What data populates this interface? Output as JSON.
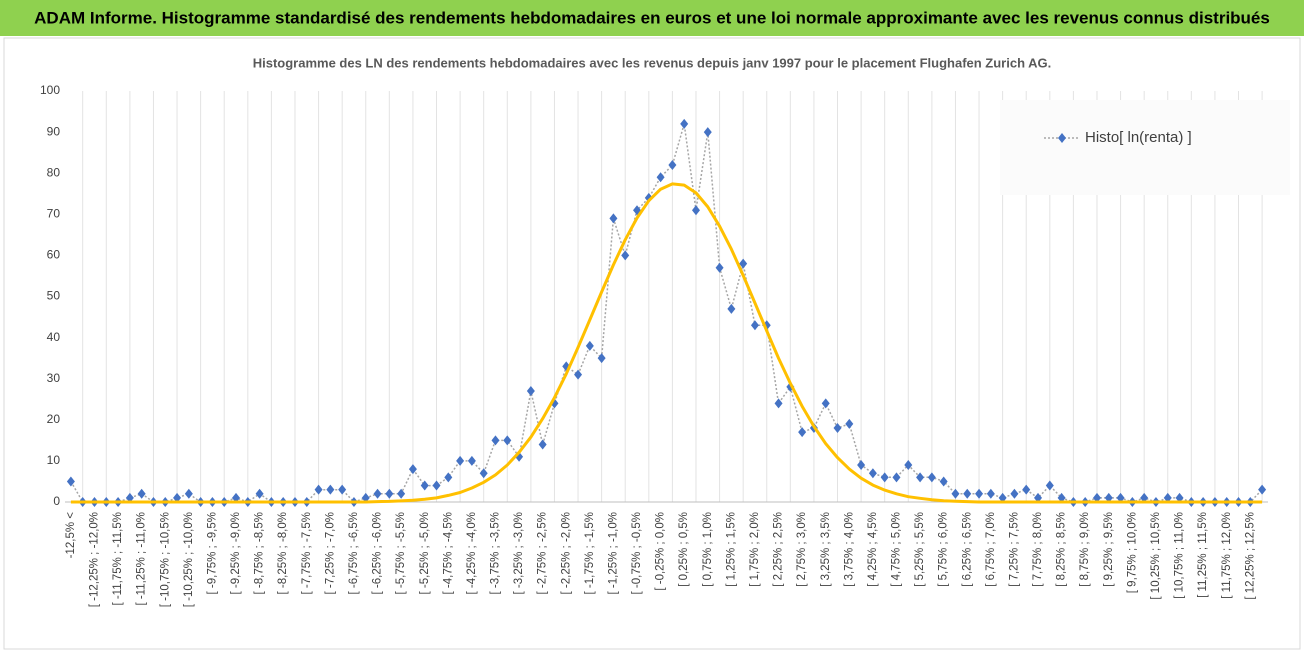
{
  "chart_data": {
    "type": "line",
    "title": "ADAM Informe. Histogramme standardisé des rendements hebdomadaires en euros et une loi normale approximante avec les revenus connus distribués",
    "subtitle": "Histogramme des LN des rendements hebdomadaires avec les revenus depuis janv 1997 pour le placement Flughafen Zurich AG.",
    "categories": [
      "-12,5% <",
      null,
      "[ -12,25% ; -12,0%",
      null,
      "[ -11,75% ; -11,5%",
      null,
      "[ -11,25% ; -11,0%",
      null,
      "[ -10,75% ; -10,5%",
      null,
      "[ -10,25% ; -10,0%",
      null,
      "[ -9,75% ; -9,5%",
      null,
      "[ -9,25% ; -9,0%",
      null,
      "[ -8,75% ; -8,5%",
      null,
      "[ -8,25% ; -8,0%",
      null,
      "[ -7,75% ; -7,5%",
      null,
      "[ -7,25% ; -7,0%",
      null,
      "[ -6,75% ; -6,5%",
      null,
      "[ -6,25% ; -6,0%",
      null,
      "[ -5,75% ; -5,5%",
      null,
      "[ -5,25% ; -5,0%",
      null,
      "[ -4,75% ; -4,5%",
      null,
      "[ -4,25% ; -4,0%",
      null,
      "[ -3,75% ; -3,5%",
      null,
      "[ -3,25% ; -3,0%",
      null,
      "[ -2,75% ; -2,5%",
      null,
      "[ -2,25% ; -2,0%",
      null,
      "[ -1,75% ; -1,5%",
      null,
      "[ -1,25% ; -1,0%",
      null,
      "[ -0,75% ; -0,5%",
      null,
      "[ -0,25% ; 0,0%",
      null,
      "[ 0,25% ; 0,5%",
      null,
      "[ 0,75% ; 1,0%",
      null,
      "[ 1,25% ; 1,5%",
      null,
      "[ 1,75% ; 2,0%",
      null,
      "[ 2,25% ; 2,5%",
      null,
      "[ 2,75% ; 3,0%",
      null,
      "[ 3,25% ; 3,5%",
      null,
      "[ 3,75% ; 4,0%",
      null,
      "[ 4,25% ; 4,5%",
      null,
      "[ 4,75% ; 5,0%",
      null,
      "[ 5,25% ; 5,5%",
      null,
      "[ 5,75% ; 6,0%",
      null,
      "[ 6,25% ; 6,5%",
      null,
      "[ 6,75% ; 7,0%",
      null,
      "[ 7,25% ; 7,5%",
      null,
      "[ 7,75% ; 8,0%",
      null,
      "[ 8,25% ; 8,5%",
      null,
      "[ 8,75% ; 9,0%",
      null,
      "[ 9,25% ; 9,5%",
      null,
      "[ 9,75% ; 10,0%",
      null,
      "[ 10,25% ; 10,5%",
      null,
      "[ 10,75% ; 11,0%",
      null,
      "[ 11,25% ; 11,5%",
      null,
      "[ 11,75% ; 12,0%",
      null,
      "[ 12,25% ; 12,5%",
      null
    ],
    "series": [
      {
        "name": "Histo[ ln(renta) ]",
        "color": "#4472c4",
        "values": [
          5,
          0,
          0,
          0,
          0,
          1,
          2,
          0,
          0,
          1,
          2,
          0,
          0,
          0,
          1,
          0,
          2,
          0,
          0,
          0,
          0,
          3,
          3,
          3,
          0,
          1,
          2,
          2,
          2,
          8,
          4,
          4,
          6,
          10,
          10,
          7,
          15,
          15,
          11,
          27,
          14,
          24,
          33,
          31,
          38,
          35,
          69,
          60,
          71,
          74,
          79,
          82,
          92,
          71,
          90,
          57,
          47,
          58,
          43,
          43,
          24,
          28,
          17,
          18,
          24,
          18,
          19,
          9,
          7,
          6,
          6,
          9,
          6,
          6,
          5,
          2,
          2,
          2,
          2,
          1,
          2,
          3,
          1,
          4,
          1,
          0,
          0,
          1,
          1,
          1,
          0,
          1,
          0,
          1,
          1,
          0,
          0,
          0,
          0,
          0,
          0,
          3
        ]
      },
      {
        "color": "#ffc000",
        "values": [
          0,
          0,
          0,
          0,
          0,
          0,
          0,
          0,
          0,
          0,
          0,
          0,
          0,
          0,
          0,
          0,
          0,
          0,
          0,
          0,
          0,
          0,
          0,
          0,
          0,
          0,
          0.1,
          0.15,
          0.26,
          0.42,
          0.66,
          1.0,
          1.6,
          2.3,
          3.4,
          4.8,
          6.6,
          9.0,
          12.1,
          15.8,
          20.3,
          25.4,
          31.2,
          37.6,
          44.3,
          51.1,
          57.7,
          63.8,
          69.1,
          73.3,
          76.1,
          77.4,
          77.1,
          75.2,
          71.8,
          67.1,
          61.5,
          55.1,
          48.4,
          41.6,
          35.0,
          28.9,
          23.3,
          18.4,
          14.2,
          10.8,
          8.0,
          5.8,
          4.1,
          2.9,
          2.0,
          1.3,
          0.9,
          0.55,
          0.3,
          0.2,
          0.1,
          0,
          0,
          0,
          0,
          0,
          0,
          0,
          0,
          0,
          0,
          0,
          0,
          0,
          0,
          0,
          0,
          0,
          0,
          0,
          0,
          0,
          0,
          0,
          0,
          0
        ]
      }
    ],
    "ylim": [
      0,
      100
    ],
    "yticks": [
      0,
      10,
      20,
      30,
      40,
      50,
      60,
      70,
      80,
      90,
      100
    ],
    "legend": "top-right"
  }
}
